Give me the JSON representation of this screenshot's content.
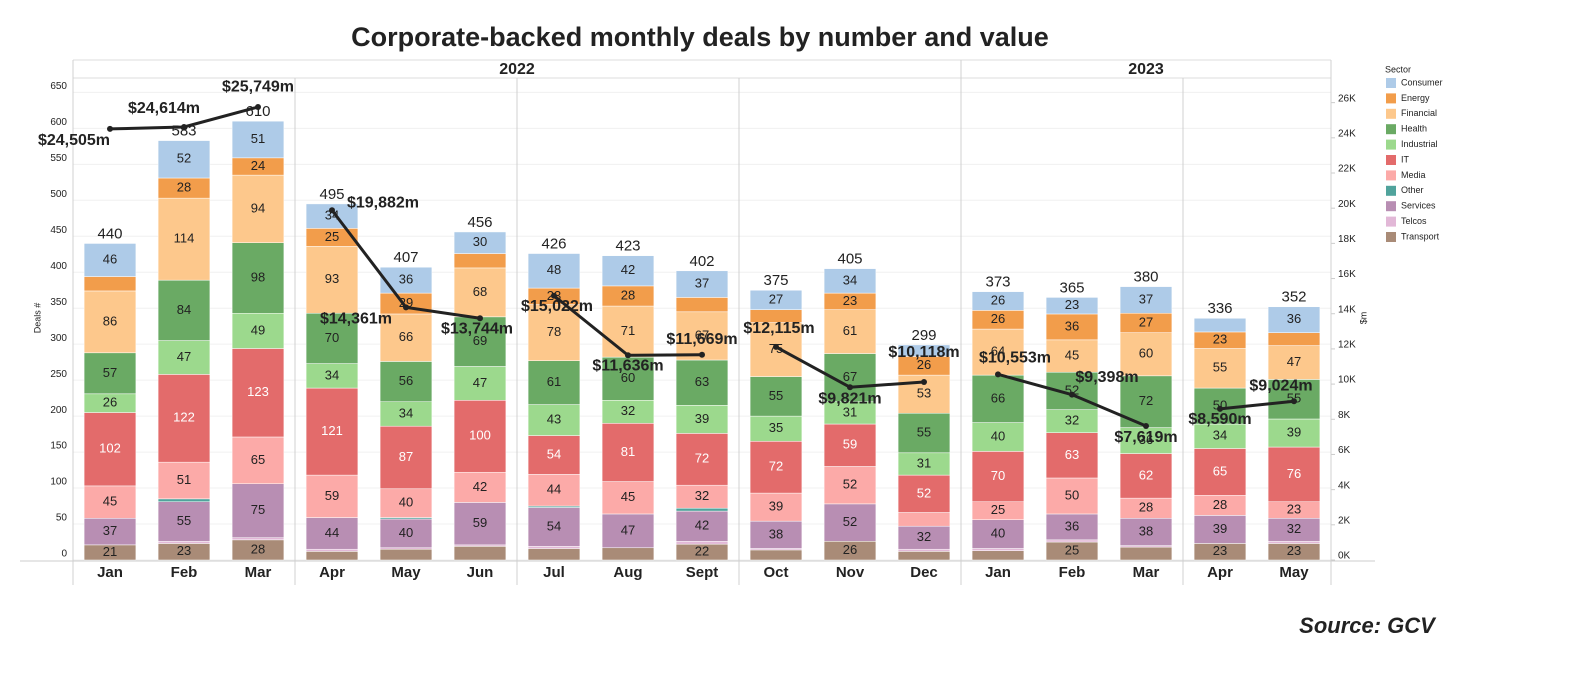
{
  "chart_data": {
    "type": "bar",
    "title": "Corporate-backed monthly deals by number and value",
    "source": "Source: GCV",
    "y_label": "Deals #",
    "y2_label": "$m",
    "legend_title": "Sector",
    "categories": [
      "Jan",
      "Feb",
      "Mar",
      "Apr",
      "May",
      "Jun",
      "Jul",
      "Aug",
      "Sept",
      "Oct",
      "Nov",
      "Dec",
      "Jan",
      "Feb",
      "Mar",
      "Apr",
      "May"
    ],
    "category_years": [
      "2022",
      "2022",
      "2022",
      "2022",
      "2022",
      "2022",
      "2022",
      "2022",
      "2022",
      "2022",
      "2022",
      "2022",
      "2023",
      "2023",
      "2023",
      "2023",
      "2023"
    ],
    "totals": [
      440,
      583,
      610,
      495,
      407,
      456,
      426,
      423,
      402,
      375,
      405,
      299,
      373,
      365,
      380,
      336,
      352
    ],
    "series": [
      {
        "name": "Consumer",
        "color": "#aecbe8",
        "values": [
          46,
          52,
          51,
          34,
          36,
          30,
          48,
          42,
          37,
          27,
          34,
          16,
          26,
          23,
          37,
          19,
          36
        ]
      },
      {
        "name": "Energy",
        "color": "#f29d4b",
        "values": [
          20,
          28,
          24,
          25,
          29,
          20,
          23,
          28,
          20,
          18,
          23,
          26,
          26,
          36,
          27,
          23,
          18
        ]
      },
      {
        "name": "Financial",
        "color": "#fdc88c",
        "values": [
          86,
          114,
          94,
          93,
          66,
          68,
          78,
          71,
          67,
          75,
          61,
          53,
          64,
          45,
          60,
          55,
          47
        ]
      },
      {
        "name": "Health",
        "color": "#6aaa64",
        "values": [
          57,
          84,
          98,
          70,
          56,
          69,
          61,
          60,
          63,
          55,
          67,
          55,
          66,
          52,
          72,
          50,
          55
        ]
      },
      {
        "name": "Industrial",
        "color": "#9cd98d",
        "values": [
          26,
          47,
          49,
          34,
          34,
          47,
          43,
          32,
          39,
          35,
          31,
          31,
          40,
          32,
          36,
          34,
          39
        ]
      },
      {
        "name": "IT",
        "color": "#e36b6b",
        "values": [
          102,
          122,
          123,
          121,
          87,
          100,
          54,
          81,
          72,
          72,
          59,
          52,
          70,
          63,
          62,
          65,
          76
        ]
      },
      {
        "name": "Media",
        "color": "#fcaaa8",
        "values": [
          45,
          51,
          65,
          59,
          40,
          42,
          44,
          45,
          32,
          39,
          52,
          19,
          25,
          50,
          28,
          28,
          23
        ]
      },
      {
        "name": "Other",
        "color": "#50a39c",
        "values": [
          0,
          4,
          0,
          0,
          2,
          0,
          2,
          0,
          4,
          0,
          0,
          0,
          0,
          0,
          0,
          0,
          0
        ]
      },
      {
        "name": "Services",
        "color": "#b88eb3",
        "values": [
          37,
          55,
          75,
          44,
          40,
          59,
          54,
          47,
          42,
          38,
          52,
          32,
          40,
          36,
          38,
          39,
          32
        ]
      },
      {
        "name": "Telcos",
        "color": "#e2b8d7",
        "values": [
          0,
          3,
          3,
          3,
          2,
          2,
          3,
          0,
          4,
          2,
          0,
          3,
          3,
          3,
          2,
          0,
          3
        ]
      },
      {
        "name": "Transport",
        "color": "#a98b77",
        "values": [
          21,
          23,
          28,
          12,
          15,
          19,
          16,
          17,
          22,
          14,
          26,
          12,
          13,
          25,
          18,
          23,
          23
        ]
      }
    ],
    "line": {
      "name": "$m",
      "color": "#222222",
      "axis": "y2",
      "values": [
        24505,
        24614,
        25749,
        19882,
        14361,
        13744,
        15022,
        11636,
        11669,
        12115,
        9821,
        10118,
        10553,
        9398,
        7619,
        8590,
        9024
      ],
      "value_labels": [
        "$24,505m",
        "$24,614m",
        "$25,749m",
        "$19,882m",
        "$14,361m",
        "$13,744m",
        "$15,022m",
        "$11,636m",
        "$11,669m",
        "$12,115m",
        "$9,821m",
        "$10,118m",
        "$10,553m",
        "$9,398m",
        "$7,619m",
        "$8,590m",
        "$9,024m"
      ]
    },
    "ylim": [
      0,
      670
    ],
    "yticks": [
      0,
      50,
      100,
      150,
      200,
      250,
      300,
      350,
      400,
      450,
      500,
      550,
      600,
      650
    ],
    "y2lim": [
      0,
      27400
    ],
    "y2ticks": [
      {
        "value": 0,
        "label": "0K"
      },
      {
        "value": 2000,
        "label": "2K"
      },
      {
        "value": 4000,
        "label": "4K"
      },
      {
        "value": 6000,
        "label": "6K"
      },
      {
        "value": 8000,
        "label": "8K"
      },
      {
        "value": 10000,
        "label": "10K"
      },
      {
        "value": 12000,
        "label": "12K"
      },
      {
        "value": 14000,
        "label": "14K"
      },
      {
        "value": 16000,
        "label": "16K"
      },
      {
        "value": 18000,
        "label": "18K"
      },
      {
        "value": 20000,
        "label": "20K"
      },
      {
        "value": 22000,
        "label": "22K"
      },
      {
        "value": 24000,
        "label": "24K"
      },
      {
        "value": 26000,
        "label": "26K"
      }
    ],
    "grid": true,
    "legend": "right"
  }
}
